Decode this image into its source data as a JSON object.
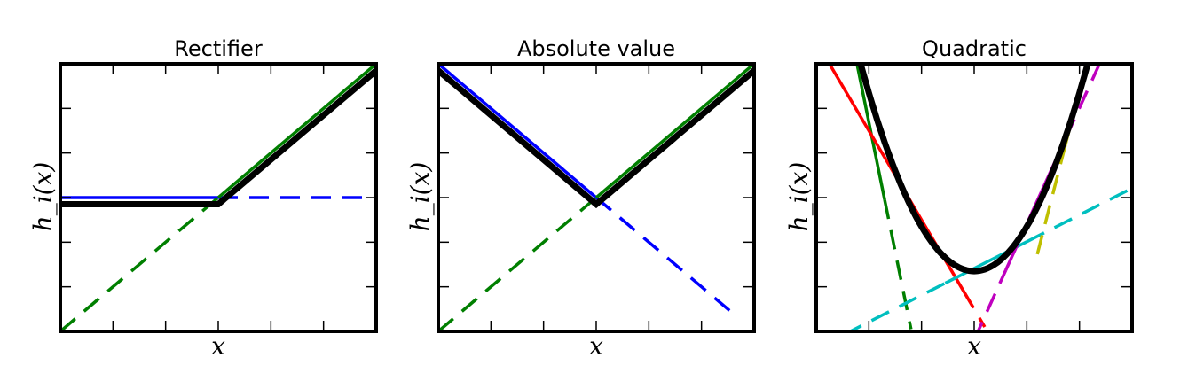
{
  "chart_data": [
    {
      "type": "line",
      "title": "Rectifier",
      "xlabel": "x",
      "ylabel": "h_i(x)",
      "xlim": [
        -3,
        3
      ],
      "ylim": [
        -3,
        3
      ],
      "series": [
        {
          "color": "#0000ff",
          "style": "solid",
          "points": [
            [
              -3,
              0
            ],
            [
              0,
              0
            ]
          ]
        },
        {
          "color": "#0000ff",
          "style": "dashed",
          "points": [
            [
              0,
              0
            ],
            [
              3,
              0
            ]
          ]
        },
        {
          "color": "#007f00",
          "style": "dashed",
          "points": [
            [
              -3,
              -3
            ],
            [
              0,
              0
            ]
          ]
        },
        {
          "color": "#007f00",
          "style": "solid",
          "points": [
            [
              0,
              0
            ],
            [
              3,
              3
            ]
          ]
        },
        {
          "color": "#000000",
          "style": "solid",
          "bold": true,
          "points": [
            [
              -3,
              -0.15
            ],
            [
              0,
              -0.15
            ],
            [
              3,
              2.85
            ]
          ]
        }
      ]
    },
    {
      "type": "line",
      "title": "Absolute value",
      "xlabel": "x",
      "ylabel": "h_i(x)",
      "xlim": [
        -3,
        3
      ],
      "ylim": [
        -3,
        3
      ],
      "series": [
        {
          "color": "#0000ff",
          "style": "solid",
          "points": [
            [
              -3,
              3
            ],
            [
              0,
              0
            ]
          ]
        },
        {
          "color": "#0000ff",
          "style": "dashed",
          "points": [
            [
              0,
              0
            ],
            [
              2.6,
              -2.6
            ]
          ]
        },
        {
          "color": "#007f00",
          "style": "dashed",
          "points": [
            [
              -3,
              -3
            ],
            [
              0,
              0
            ]
          ]
        },
        {
          "color": "#007f00",
          "style": "solid",
          "points": [
            [
              0,
              0
            ],
            [
              3,
              3
            ]
          ]
        },
        {
          "color": "#000000",
          "style": "solid",
          "bold": true,
          "points": [
            [
              -3,
              2.85
            ],
            [
              0,
              -0.15
            ],
            [
              3,
              2.85
            ]
          ]
        }
      ]
    },
    {
      "type": "line",
      "title": "Quadratic",
      "xlabel": "x",
      "ylabel": "h_i(x)",
      "xlim": [
        -3,
        3
      ],
      "ylim": [
        -1.5,
        4.5
      ],
      "curve": {
        "color": "#000000",
        "bold": true,
        "function": "x^2 - 0.15",
        "x_range": [
          -3,
          3
        ]
      },
      "tangents": [
        {
          "color": "#007f00",
          "at_x": -2.9,
          "solid_x": [
            -2.9,
            -1.7
          ],
          "dashed_x": [
            -1.7,
            -1.2
          ]
        },
        {
          "color": "#ff0000",
          "at_x": -1.0,
          "solid_x": [
            -2.8,
            -0.2
          ],
          "dashed_x": [
            -0.2,
            0.2
          ]
        },
        {
          "color": "#00bfbf",
          "at_x": 0.3,
          "solid_x": [
            -0.55,
            1.0
          ],
          "dashed_x": [
            1.0,
            3.0
          ],
          "dashed_before_x": [
            -3.0,
            -0.55
          ]
        },
        {
          "color": "#bf00bf",
          "at_x": 1.3,
          "solid_x": [
            0.6,
            1.75
          ],
          "dashed_x": [
            1.75,
            2.75
          ],
          "dashed_before_x": [
            0.0,
            0.6
          ]
        },
        {
          "color": "#bfbf00",
          "at_x": 2.3,
          "solid_x": [
            1.7,
            3.0
          ],
          "dashed_before_x": [
            1.2,
            1.7
          ]
        }
      ]
    }
  ]
}
